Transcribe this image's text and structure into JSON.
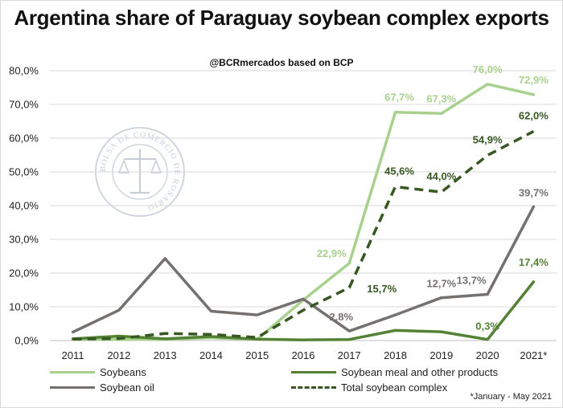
{
  "chart_data": {
    "type": "line",
    "title": "Argentina share of Paraguay soybean complex exports",
    "subtitle": "@BCRmercados based on BCP",
    "categories": [
      "2011",
      "2012",
      "2013",
      "2014",
      "2015",
      "2016",
      "2017",
      "2018",
      "2019",
      "2020",
      "2021*"
    ],
    "y_ticks": [
      "0,0%",
      "10,0%",
      "20,0%",
      "30,0%",
      "40,0%",
      "50,0%",
      "60,0%",
      "70,0%",
      "80,0%"
    ],
    "ylim": [
      0,
      80
    ],
    "grid": true,
    "legend_position": "bottom",
    "series": [
      {
        "name": "Soybeans",
        "color": "#a9d18e",
        "dash": false,
        "values": [
          0.3,
          0.3,
          0.3,
          0.8,
          0.3,
          12.0,
          22.9,
          67.7,
          67.3,
          76.0,
          72.9
        ],
        "labels": [
          null,
          null,
          null,
          null,
          null,
          null,
          "22,9%",
          "67,7%",
          "67,3%",
          "76,0%",
          "72,9%"
        ]
      },
      {
        "name": "Soybean oil",
        "color": "#767171",
        "dash": false,
        "values": [
          2.5,
          9.0,
          24.3,
          8.7,
          7.6,
          12.3,
          2.8,
          7.6,
          12.7,
          13.7,
          39.7
        ],
        "labels": [
          null,
          null,
          null,
          null,
          null,
          null,
          "2,8%",
          null,
          "12,7%",
          "13,7%",
          "39,7%"
        ]
      },
      {
        "name": "Soybean meal and other products",
        "color": "#548235",
        "dash": false,
        "values": [
          0.5,
          1.3,
          0.5,
          1.2,
          0.4,
          0.2,
          0.3,
          3.0,
          2.6,
          0.3,
          17.4
        ],
        "labels": [
          null,
          null,
          null,
          null,
          null,
          null,
          null,
          null,
          null,
          "0,3%",
          "17,4%"
        ]
      },
      {
        "name": "Total soybean complex",
        "color": "#385723",
        "dash": true,
        "values": [
          0.4,
          0.6,
          2.1,
          1.8,
          0.9,
          9.0,
          15.7,
          45.6,
          44.0,
          54.9,
          62.0
        ],
        "labels": [
          null,
          null,
          null,
          null,
          null,
          null,
          "15,7%",
          "45,6%",
          "44,0%",
          "54,9%",
          "62,0%"
        ]
      }
    ]
  },
  "watermark_text": "BOLSA DE COMERCIO DE ROSARIO",
  "footnote": "*January - May 2021"
}
